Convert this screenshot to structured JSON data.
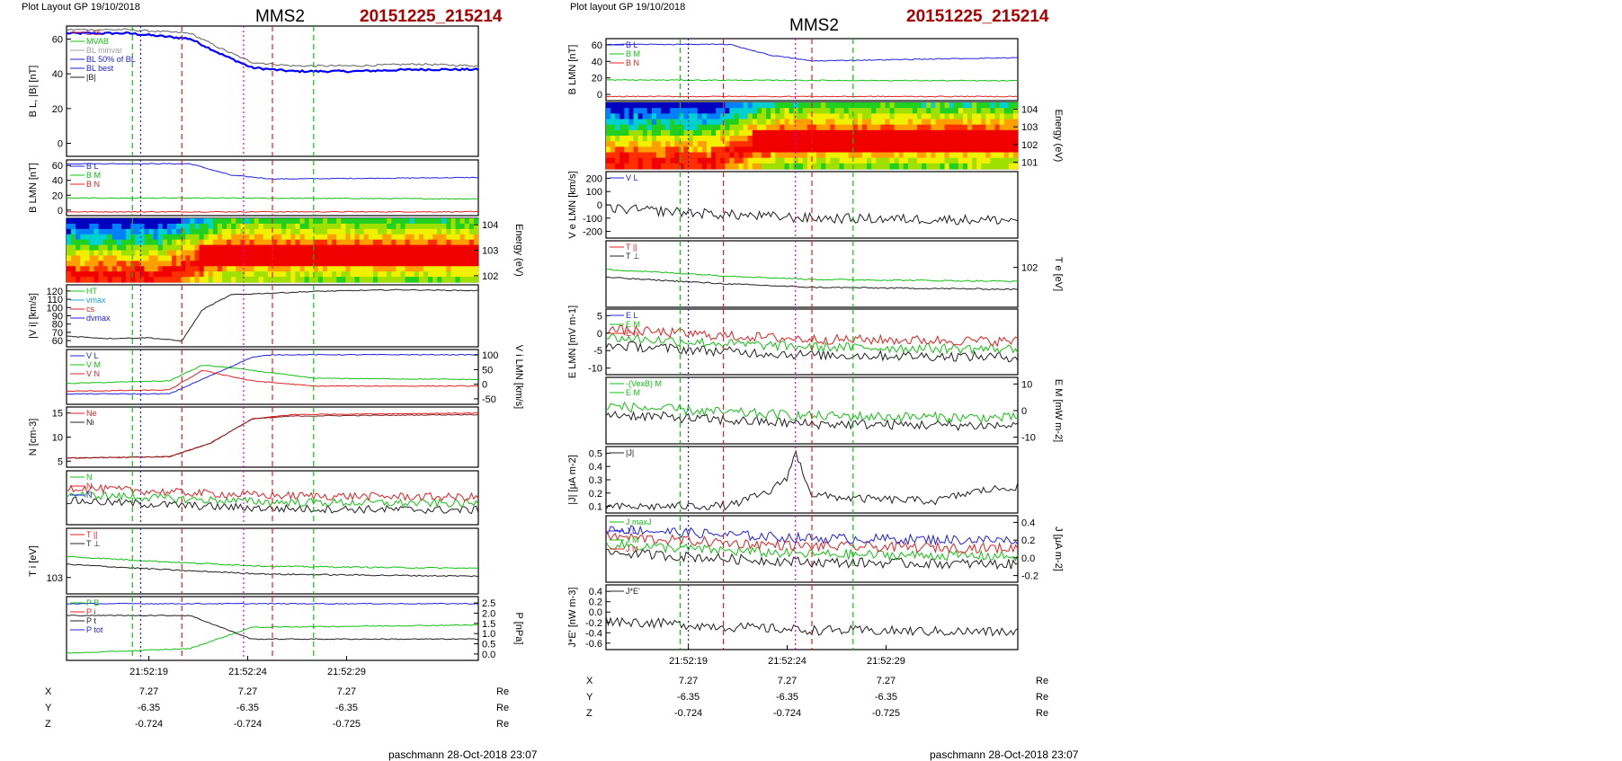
{
  "left": {
    "header": "Plot Layout GP 19/10/2018",
    "title": "MMS2",
    "event_id": "20151225_215214",
    "footer": "paschmann 28-Oct-2018 23:07",
    "time_ticks": [
      "21:52:19",
      "21:52:24",
      "21:52:29"
    ],
    "coords": {
      "rows": [
        {
          "label": "X",
          "values": [
            "7.27",
            "7.27",
            "7.27"
          ],
          "unit": "Re"
        },
        {
          "label": "Y",
          "values": [
            "-6.35",
            "-6.35",
            "-6.35"
          ],
          "unit": "Re"
        },
        {
          "label": "Z",
          "values": [
            "-0.724",
            "-0.724",
            "-0.725"
          ],
          "unit": "Re"
        }
      ]
    },
    "panels": [
      {
        "ylabel": "B_L, |B| [nT]",
        "yticks_left": [
          "0",
          "20",
          "40",
          "60"
        ],
        "legend": [
          "L cs",
          "MVAB",
          "BL minvar",
          "BL 50% of BL",
          "BL best",
          "|B|"
        ]
      },
      {
        "ylabel": "B_LMN [nT]",
        "yticks_left": [
          "0",
          "20",
          "40",
          "60"
        ],
        "legend": [
          "B_L",
          "B_M",
          "B_N"
        ]
      },
      {
        "ylabel": "Energy (eV)",
        "yticks_right": [
          "10^2",
          "10^3",
          "10^4"
        ]
      },
      {
        "ylabel": "|V_i| [km/s]",
        "yticks_left": [
          "60",
          "70",
          "80",
          "90",
          "100",
          "110",
          "120"
        ],
        "legend": [
          "HT",
          "vmax",
          "cs",
          "dvmax"
        ]
      },
      {
        "ylabel": "V_i LMN [km/s]",
        "yticks_right": [
          "-50",
          "0",
          "50",
          "100"
        ],
        "legend": [
          "V_L",
          "V_M",
          "V_N"
        ]
      },
      {
        "ylabel": "N [cm^-3]",
        "yticks_left": [
          "5",
          "10",
          "15"
        ],
        "legend": [
          "Ne",
          "Ni"
        ]
      },
      {
        "ylabel": "",
        "legend": [
          "N",
          "N",
          "N"
        ]
      },
      {
        "ylabel": "T_i [eV]",
        "yticks_left": [
          "10^3"
        ],
        "legend": [
          "T_||",
          "T_⊥"
        ]
      },
      {
        "ylabel": "P [nPa]",
        "yticks_right": [
          "0.0",
          "0.5",
          "1.0",
          "1.5",
          "2.0",
          "2.5"
        ],
        "legend": [
          "P_B",
          "P_i",
          "P_t",
          "P_tot"
        ]
      }
    ]
  },
  "right": {
    "header": "Plot layout GP 19/10/2018",
    "title": "MMS2",
    "event_id": "20151225_215214",
    "footer": "paschmann 28-Oct-2018 23:07",
    "time_ticks": [
      "21:52:19",
      "21:52:24",
      "21:52:29"
    ],
    "coords": {
      "rows": [
        {
          "label": "X",
          "values": [
            "7.27",
            "7.27",
            "7.27"
          ],
          "unit": "Re"
        },
        {
          "label": "Y",
          "values": [
            "-6.35",
            "-6.35",
            "-6.35"
          ],
          "unit": "Re"
        },
        {
          "label": "Z",
          "values": [
            "-0.724",
            "-0.724",
            "-0.725"
          ],
          "unit": "Re"
        }
      ]
    },
    "panels": [
      {
        "ylabel": "B_LMN [nT]",
        "yticks_left": [
          "0",
          "20",
          "40",
          "60"
        ],
        "legend": [
          "B_L",
          "B_M",
          "B_N"
        ]
      },
      {
        "ylabel": "Energy (eV)",
        "yticks_right": [
          "10^1",
          "10^2",
          "10^3",
          "10^4"
        ]
      },
      {
        "ylabel": "V_e LMN [km/s]",
        "yticks_left": [
          "-200",
          "-100",
          "0",
          "100",
          "200"
        ],
        "legend": [
          "V_L"
        ]
      },
      {
        "ylabel": "T_e [eV]",
        "yticks_right": [
          "10^2"
        ],
        "legend": [
          "T_||",
          "T_⊥"
        ]
      },
      {
        "ylabel": "E_LMN [mV m^-1]",
        "yticks_left": [
          "-10",
          "-5",
          "0",
          "5"
        ],
        "legend": [
          "E_L",
          "E_M",
          "E_N"
        ]
      },
      {
        "ylabel": "E_M [mW m^-2]",
        "yticks_right": [
          "-10",
          "0",
          "10"
        ],
        "legend": [
          "-(VexB)_M",
          "E_M"
        ]
      },
      {
        "ylabel": "|J| [μA m^-2]",
        "yticks_left": [
          "0.1",
          "0.2",
          "0.3",
          "0.4",
          "0.5"
        ],
        "legend": [
          "|J|"
        ]
      },
      {
        "ylabel": "J [μA m^-2]",
        "yticks_right": [
          "-0.2",
          "0.0",
          "0.2",
          "0.4"
        ],
        "legend": [
          "J_maxJ",
          "J_L",
          "J_M",
          "J_N"
        ]
      },
      {
        "ylabel": "J*E' [nW m^-3]",
        "yticks_left": [
          "-0.6",
          "-0.4",
          "-0.2",
          "0.0",
          "0.2",
          "0.4"
        ],
        "legend": [
          "J*E'"
        ]
      }
    ]
  },
  "colors": {
    "blue": "#2020e0",
    "green": "#10c010",
    "red": "#e02020",
    "magenta": "#e000e0",
    "black": "#202020",
    "gray": "#909090",
    "title_red": "#a80000"
  },
  "chart_data": [
    {
      "type": "line",
      "title": "MMS2",
      "panels": [
        {
          "name": "B_L, |B|",
          "ylim": [
            -2,
            70
          ],
          "series": [
            {
              "name": "BL best",
              "color": "#0000ff",
              "x": [
                0,
                0.15,
                0.3,
                0.38,
                0.45,
                0.55,
                0.7,
                0.85,
                1.0
              ],
              "values": [
                66,
                66,
                63,
                54,
                47,
                45,
                45,
                46,
                46
              ]
            },
            {
              "name": "|B|",
              "color": "#606060",
              "x": [
                0,
                0.15,
                0.3,
                0.38,
                0.45,
                0.55,
                0.7,
                0.85,
                1.0
              ],
              "values": [
                68,
                68,
                66,
                57,
                50,
                48,
                48,
                49,
                48
              ]
            }
          ]
        },
        {
          "name": "B_LMN",
          "ylim": [
            -5,
            68
          ],
          "series": [
            {
              "name": "B_L",
              "color": "#2020e0",
              "x": [
                0,
                0.3,
                0.4,
                0.5,
                1.0
              ],
              "values": [
                63,
                63,
                48,
                43,
                45
              ]
            },
            {
              "name": "B_M",
              "color": "#10c010",
              "x": [
                0,
                0.4,
                1.0
              ],
              "values": [
                18,
                18,
                17
              ]
            },
            {
              "name": "B_N",
              "color": "#e02020",
              "x": [
                0,
                1.0
              ],
              "values": [
                0,
                0
              ]
            }
          ]
        },
        {
          "name": "|V_i|",
          "ylim": [
            55,
            130
          ],
          "series": [
            {
              "name": "|V_i|",
              "color": "#202020",
              "x": [
                0,
                0.1,
                0.2,
                0.28,
                0.33,
                0.4,
                0.6,
                0.8,
                1.0
              ],
              "values": [
                68,
                65,
                66,
                62,
                100,
                118,
                122,
                124,
                123
              ]
            }
          ]
        },
        {
          "name": "V_i LMN",
          "ylim": [
            -70,
            140
          ],
          "series": [
            {
              "name": "V_L",
              "color": "#2020e0",
              "x": [
                0,
                0.25,
                0.35,
                0.45,
                0.5,
                1.0
              ],
              "values": [
                -30,
                -30,
                40,
                110,
                120,
                120
              ]
            },
            {
              "name": "V_M",
              "color": "#10c010",
              "x": [
                0,
                0.25,
                0.33,
                0.4,
                0.6,
                1.0
              ],
              "values": [
                10,
                20,
                80,
                70,
                30,
                25
              ]
            },
            {
              "name": "V_N",
              "color": "#e02020",
              "x": [
                0,
                0.25,
                0.33,
                0.45,
                0.6,
                1.0
              ],
              "values": [
                -20,
                -15,
                60,
                20,
                0,
                0
              ]
            }
          ]
        },
        {
          "name": "N",
          "ylim": [
            0,
            20
          ],
          "series": [
            {
              "name": "Ne",
              "color": "#e02020",
              "x": [
                0,
                0.25,
                0.35,
                0.45,
                0.55,
                1.0
              ],
              "values": [
                3,
                3.5,
                8,
                16,
                17.5,
                18
              ]
            },
            {
              "name": "Ni",
              "color": "#802020",
              "x": [
                0,
                0.25,
                0.35,
                0.45,
                0.55,
                1.0
              ],
              "values": [
                3,
                3.5,
                8,
                16,
                17,
                17.5
              ]
            }
          ]
        },
        {
          "name": "P",
          "ylim": [
            0,
            2.7
          ],
          "series": [
            {
              "name": "P_tot",
              "color": "#2020e0",
              "x": [
                0,
                1.0
              ],
              "values": [
                2.4,
                2.4
              ]
            },
            {
              "name": "P_B",
              "color": "#10c010",
              "x": [
                0,
                0.3,
                0.45,
                1.0
              ],
              "values": [
                0.3,
                0.5,
                1.4,
                1.5
              ]
            },
            {
              "name": "P_i",
              "color": "#202020",
              "x": [
                0,
                0.3,
                0.45,
                1.0
              ],
              "values": [
                1.9,
                1.9,
                0.9,
                0.9
              ]
            }
          ]
        }
      ]
    },
    {
      "type": "line",
      "title": "MMS2",
      "panels": [
        {
          "name": "B_LMN",
          "ylim": [
            -5,
            70
          ],
          "series": [
            {
              "name": "B_L",
              "color": "#2020e0",
              "x": [
                0,
                0.3,
                0.4,
                0.5,
                1.0
              ],
              "values": [
                63,
                63,
                50,
                43,
                47
              ]
            },
            {
              "name": "B_M",
              "color": "#10c010",
              "x": [
                0,
                1.0
              ],
              "values": [
                20,
                19
              ]
            },
            {
              "name": "B_N",
              "color": "#e02020",
              "x": [
                0,
                1.0
              ],
              "values": [
                0,
                0
              ]
            }
          ]
        },
        {
          "name": "|J|",
          "ylim": [
            0,
            0.55
          ],
          "series": [
            {
              "name": "|J|",
              "color": "#202020",
              "x": [
                0,
                0.3,
                0.35,
                0.4,
                0.44,
                0.46,
                0.5,
                0.6,
                0.8,
                0.9,
                1.0
              ],
              "values": [
                0.05,
                0.06,
                0.12,
                0.18,
                0.3,
                0.5,
                0.15,
                0.12,
                0.1,
                0.18,
                0.22
              ]
            }
          ]
        }
      ]
    }
  ]
}
